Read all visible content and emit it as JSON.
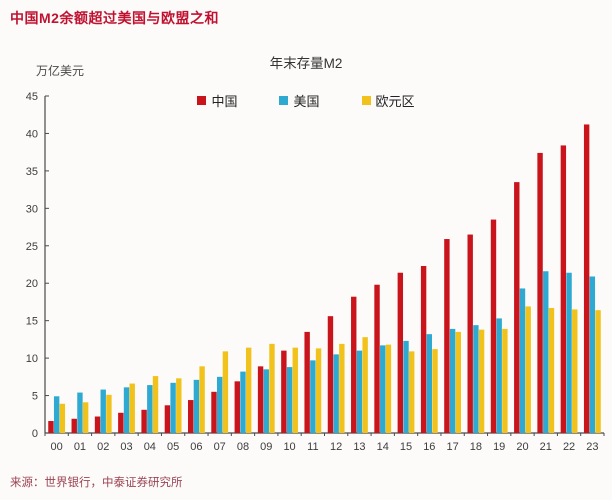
{
  "page": {
    "title": "中国M2余额超过美国与欧盟之和",
    "source": "来源：世界银行，中泰证券研究所"
  },
  "chart_data": {
    "type": "bar",
    "title": "年末存量M2",
    "ylabel": "万亿美元",
    "xlabel": "",
    "ylim": [
      0,
      45
    ],
    "ytick_step": 5,
    "grid": false,
    "legend_position": "top-center-inside",
    "categories": [
      "00",
      "01",
      "02",
      "03",
      "04",
      "05",
      "06",
      "07",
      "08",
      "09",
      "10",
      "11",
      "12",
      "13",
      "14",
      "15",
      "16",
      "17",
      "18",
      "19",
      "20",
      "21",
      "22",
      "23"
    ],
    "series": [
      {
        "name": "中国",
        "color": "#C9141C",
        "values": [
          1.6,
          1.9,
          2.2,
          2.7,
          3.1,
          3.7,
          4.4,
          5.5,
          6.9,
          8.9,
          11.0,
          13.5,
          15.6,
          18.2,
          19.8,
          21.4,
          22.3,
          25.9,
          26.5,
          28.5,
          33.5,
          37.4,
          38.4,
          41.2
        ]
      },
      {
        "name": "美国",
        "color": "#2EAAD2",
        "values": [
          4.9,
          5.4,
          5.8,
          6.1,
          6.4,
          6.7,
          7.1,
          7.5,
          8.2,
          8.5,
          8.8,
          9.7,
          10.5,
          11.0,
          11.7,
          12.3,
          13.2,
          13.9,
          14.4,
          15.3,
          19.3,
          21.6,
          21.4,
          20.9
        ]
      },
      {
        "name": "欧元区",
        "color": "#F1C21B",
        "values": [
          3.9,
          4.1,
          5.1,
          6.6,
          7.6,
          7.3,
          8.9,
          10.9,
          11.4,
          11.9,
          11.4,
          11.3,
          11.9,
          12.8,
          11.8,
          10.9,
          11.2,
          13.5,
          13.8,
          13.9,
          16.9,
          16.7,
          16.5,
          16.4
        ]
      }
    ]
  },
  "style": {
    "title_color": "#C01230",
    "source_color": "#9C4352",
    "axis_color": "#4a4a4a",
    "background": "#FCFBFA"
  }
}
